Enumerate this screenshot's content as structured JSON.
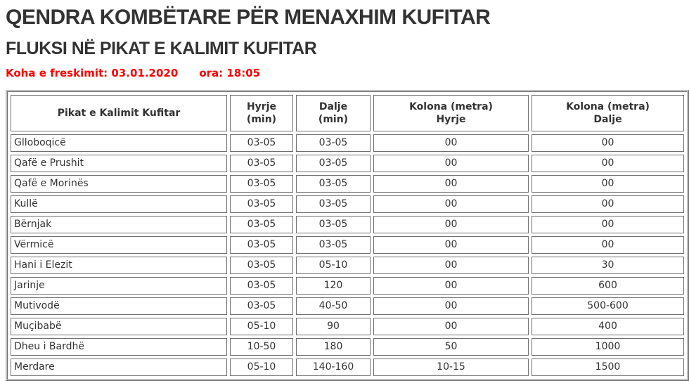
{
  "header": {
    "title": "QENDRA KOMBËTARE PËR MENAXHIM KUFITAR",
    "subtitle": "FLUKSI NË PIKAT E KALIMIT KUFITAR",
    "refresh": {
      "label": "Koha e freskimit:",
      "date": "03.01.2020",
      "time_label": "ora:",
      "time": "18:05"
    }
  },
  "table": {
    "columns": [
      "Pikat e Kalimit Kufitar",
      "Hyrje\n(min)",
      "Dalje\n(min)",
      "Kolona (metra)\nHyrje",
      "Kolona (metra)\nDalje"
    ],
    "rows": [
      [
        "Glloboqicë",
        "03-05",
        "03-05",
        "00",
        "00"
      ],
      [
        "Qafë e Prushit",
        "03-05",
        "03-05",
        "00",
        "00"
      ],
      [
        "Qafë e Morinës",
        "03-05",
        "03-05",
        "00",
        "00"
      ],
      [
        "Kullë",
        "03-05",
        "03-05",
        "00",
        "00"
      ],
      [
        "Bërnjak",
        "03-05",
        "03-05",
        "00",
        "00"
      ],
      [
        "Vërmicë",
        "03-05",
        "03-05",
        "00",
        "00"
      ],
      [
        "Hani i Elezit",
        "03-05",
        "05-10",
        "00",
        "30"
      ],
      [
        "Jarinje",
        "03-05",
        "120",
        "00",
        "600"
      ],
      [
        "Mutivodë",
        "03-05",
        "40-50",
        "00",
        "500-600"
      ],
      [
        "Muçibabë",
        "05-10",
        "90",
        "00",
        "400"
      ],
      [
        "Dheu i Bardhë",
        "10-50",
        "180",
        "50",
        "1000"
      ],
      [
        "Merdare",
        "05-10",
        "140-160",
        "10-15",
        "1500"
      ]
    ]
  },
  "colors": {
    "accent_red": "#ff0000",
    "title_text": "#333333",
    "cell_text": "#333333",
    "border_gray": "#6f6f6f",
    "frame_gray": "#c0c0c0",
    "bg": "#ffffff"
  }
}
